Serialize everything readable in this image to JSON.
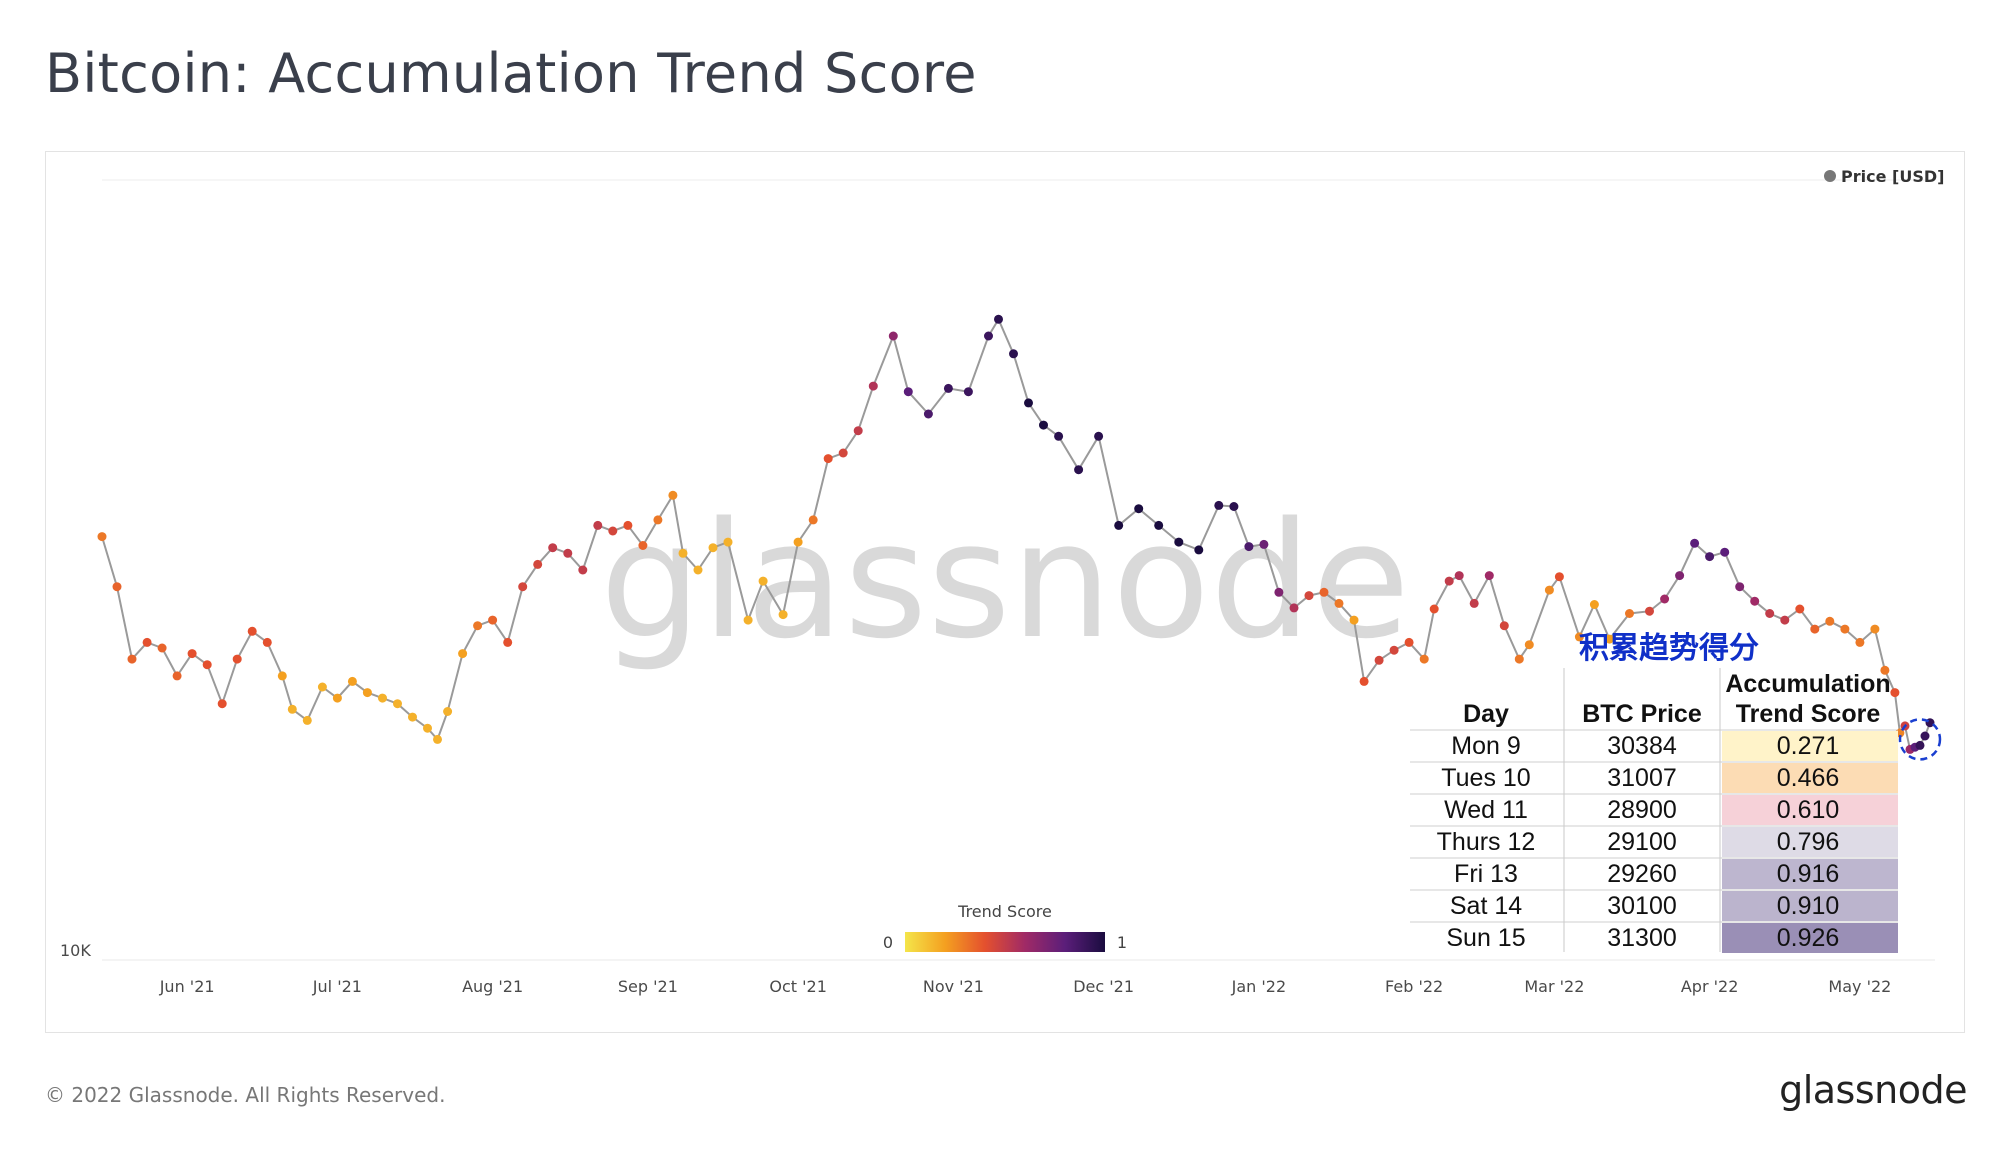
{
  "title": "Bitcoin: Accumulation Trend Score",
  "footer": {
    "copyright": "© 2022 Glassnode. All Rights Reserved.",
    "logo": "glassnode"
  },
  "watermark": "glassnode",
  "chart_data": {
    "type": "scatter",
    "title": "Bitcoin: Accumulation Trend Score",
    "series": [
      {
        "name": "Price [USD]",
        "color_by": "Trend Score",
        "line_color": "#9a9a9a",
        "points": [
          {
            "x": "2021-05-15",
            "y": 48000,
            "score": 0.3
          },
          {
            "x": "2021-05-18",
            "y": 43500,
            "score": 0.35
          },
          {
            "x": "2021-05-21",
            "y": 37000,
            "score": 0.35
          },
          {
            "x": "2021-05-24",
            "y": 38500,
            "score": 0.4
          },
          {
            "x": "2021-05-27",
            "y": 38000,
            "score": 0.35
          },
          {
            "x": "2021-05-30",
            "y": 35500,
            "score": 0.35
          },
          {
            "x": "2021-06-02",
            "y": 37500,
            "score": 0.4
          },
          {
            "x": "2021-06-05",
            "y": 36500,
            "score": 0.4
          },
          {
            "x": "2021-06-08",
            "y": 33000,
            "score": 0.4
          },
          {
            "x": "2021-06-11",
            "y": 37000,
            "score": 0.4
          },
          {
            "x": "2021-06-14",
            "y": 39500,
            "score": 0.4
          },
          {
            "x": "2021-06-17",
            "y": 38500,
            "score": 0.4
          },
          {
            "x": "2021-06-20",
            "y": 35500,
            "score": 0.2
          },
          {
            "x": "2021-06-22",
            "y": 32500,
            "score": 0.15
          },
          {
            "x": "2021-06-25",
            "y": 31500,
            "score": 0.15
          },
          {
            "x": "2021-06-28",
            "y": 34500,
            "score": 0.15
          },
          {
            "x": "2021-07-01",
            "y": 33500,
            "score": 0.2
          },
          {
            "x": "2021-07-04",
            "y": 35000,
            "score": 0.2
          },
          {
            "x": "2021-07-07",
            "y": 34000,
            "score": 0.2
          },
          {
            "x": "2021-07-10",
            "y": 33500,
            "score": 0.15
          },
          {
            "x": "2021-07-13",
            "y": 33000,
            "score": 0.15
          },
          {
            "x": "2021-07-16",
            "y": 31800,
            "score": 0.15
          },
          {
            "x": "2021-07-19",
            "y": 30800,
            "score": 0.15
          },
          {
            "x": "2021-07-21",
            "y": 29800,
            "score": 0.15
          },
          {
            "x": "2021-07-23",
            "y": 32300,
            "score": 0.15
          },
          {
            "x": "2021-07-26",
            "y": 37500,
            "score": 0.2
          },
          {
            "x": "2021-07-29",
            "y": 40000,
            "score": 0.3
          },
          {
            "x": "2021-08-01",
            "y": 40500,
            "score": 0.35
          },
          {
            "x": "2021-08-04",
            "y": 38500,
            "score": 0.4
          },
          {
            "x": "2021-08-07",
            "y": 43500,
            "score": 0.45
          },
          {
            "x": "2021-08-10",
            "y": 45500,
            "score": 0.45
          },
          {
            "x": "2021-08-13",
            "y": 47000,
            "score": 0.5
          },
          {
            "x": "2021-08-16",
            "y": 46500,
            "score": 0.5
          },
          {
            "x": "2021-08-19",
            "y": 45000,
            "score": 0.5
          },
          {
            "x": "2021-08-22",
            "y": 49000,
            "score": 0.5
          },
          {
            "x": "2021-08-25",
            "y": 48500,
            "score": 0.45
          },
          {
            "x": "2021-08-28",
            "y": 49000,
            "score": 0.4
          },
          {
            "x": "2021-08-31",
            "y": 47200,
            "score": 0.35
          },
          {
            "x": "2021-09-03",
            "y": 49500,
            "score": 0.3
          },
          {
            "x": "2021-09-06",
            "y": 51700,
            "score": 0.25
          },
          {
            "x": "2021-09-08",
            "y": 46500,
            "score": 0.15
          },
          {
            "x": "2021-09-11",
            "y": 45000,
            "score": 0.15
          },
          {
            "x": "2021-09-14",
            "y": 47000,
            "score": 0.15
          },
          {
            "x": "2021-09-17",
            "y": 47500,
            "score": 0.15
          },
          {
            "x": "2021-09-21",
            "y": 40500,
            "score": 0.15
          },
          {
            "x": "2021-09-24",
            "y": 44000,
            "score": 0.15
          },
          {
            "x": "2021-09-28",
            "y": 41000,
            "score": 0.15
          },
          {
            "x": "2021-10-01",
            "y": 47500,
            "score": 0.2
          },
          {
            "x": "2021-10-04",
            "y": 49500,
            "score": 0.3
          },
          {
            "x": "2021-10-07",
            "y": 55000,
            "score": 0.4
          },
          {
            "x": "2021-10-10",
            "y": 55500,
            "score": 0.45
          },
          {
            "x": "2021-10-13",
            "y": 57500,
            "score": 0.5
          },
          {
            "x": "2021-10-16",
            "y": 61500,
            "score": 0.55
          },
          {
            "x": "2021-10-20",
            "y": 66000,
            "score": 0.65
          },
          {
            "x": "2021-10-23",
            "y": 61000,
            "score": 0.8
          },
          {
            "x": "2021-10-27",
            "y": 59000,
            "score": 0.85
          },
          {
            "x": "2021-10-31",
            "y": 61300,
            "score": 0.9
          },
          {
            "x": "2021-11-04",
            "y": 61000,
            "score": 0.9
          },
          {
            "x": "2021-11-08",
            "y": 66000,
            "score": 0.9
          },
          {
            "x": "2021-11-10",
            "y": 67500,
            "score": 0.95
          },
          {
            "x": "2021-11-13",
            "y": 64400,
            "score": 0.95
          },
          {
            "x": "2021-11-16",
            "y": 60000,
            "score": 1.0
          },
          {
            "x": "2021-11-19",
            "y": 58000,
            "score": 1.0
          },
          {
            "x": "2021-11-22",
            "y": 57000,
            "score": 0.95
          },
          {
            "x": "2021-11-26",
            "y": 54000,
            "score": 0.95
          },
          {
            "x": "2021-11-30",
            "y": 57000,
            "score": 0.95
          },
          {
            "x": "2021-12-04",
            "y": 49000,
            "score": 1.0
          },
          {
            "x": "2021-12-08",
            "y": 50500,
            "score": 1.0
          },
          {
            "x": "2021-12-12",
            "y": 49000,
            "score": 1.0
          },
          {
            "x": "2021-12-16",
            "y": 47500,
            "score": 1.0
          },
          {
            "x": "2021-12-20",
            "y": 46800,
            "score": 1.0
          },
          {
            "x": "2021-12-24",
            "y": 50800,
            "score": 0.95
          },
          {
            "x": "2021-12-27",
            "y": 50700,
            "score": 0.95
          },
          {
            "x": "2021-12-30",
            "y": 47100,
            "score": 0.85
          },
          {
            "x": "2022-01-02",
            "y": 47300,
            "score": 0.75
          },
          {
            "x": "2022-01-05",
            "y": 43000,
            "score": 0.7
          },
          {
            "x": "2022-01-08",
            "y": 41600,
            "score": 0.55
          },
          {
            "x": "2022-01-11",
            "y": 42700,
            "score": 0.45
          },
          {
            "x": "2022-01-14",
            "y": 43000,
            "score": 0.35
          },
          {
            "x": "2022-01-17",
            "y": 42000,
            "score": 0.3
          },
          {
            "x": "2022-01-20",
            "y": 40500,
            "score": 0.2
          },
          {
            "x": "2022-01-22",
            "y": 35000,
            "score": 0.4
          },
          {
            "x": "2022-01-25",
            "y": 36900,
            "score": 0.45
          },
          {
            "x": "2022-01-28",
            "y": 37800,
            "score": 0.45
          },
          {
            "x": "2022-01-31",
            "y": 38500,
            "score": 0.4
          },
          {
            "x": "2022-02-03",
            "y": 37000,
            "score": 0.3
          },
          {
            "x": "2022-02-05",
            "y": 41500,
            "score": 0.4
          },
          {
            "x": "2022-02-08",
            "y": 44000,
            "score": 0.5
          },
          {
            "x": "2022-02-10",
            "y": 44500,
            "score": 0.55
          },
          {
            "x": "2022-02-13",
            "y": 42000,
            "score": 0.5
          },
          {
            "x": "2022-02-16",
            "y": 44500,
            "score": 0.6
          },
          {
            "x": "2022-02-19",
            "y": 40000,
            "score": 0.45
          },
          {
            "x": "2022-02-22",
            "y": 37000,
            "score": 0.3
          },
          {
            "x": "2022-02-24",
            "y": 38300,
            "score": 0.25
          },
          {
            "x": "2022-02-28",
            "y": 43200,
            "score": 0.25
          },
          {
            "x": "2022-03-02",
            "y": 44400,
            "score": 0.4
          },
          {
            "x": "2022-03-06",
            "y": 39000,
            "score": 0.25
          },
          {
            "x": "2022-03-09",
            "y": 41900,
            "score": 0.2
          },
          {
            "x": "2022-03-12",
            "y": 38800,
            "score": 0.2
          },
          {
            "x": "2022-03-16",
            "y": 41100,
            "score": 0.3
          },
          {
            "x": "2022-03-20",
            "y": 41300,
            "score": 0.45
          },
          {
            "x": "2022-03-23",
            "y": 42400,
            "score": 0.6
          },
          {
            "x": "2022-03-26",
            "y": 44500,
            "score": 0.7
          },
          {
            "x": "2022-03-29",
            "y": 47400,
            "score": 0.8
          },
          {
            "x": "2022-04-01",
            "y": 46200,
            "score": 0.85
          },
          {
            "x": "2022-04-04",
            "y": 46600,
            "score": 0.8
          },
          {
            "x": "2022-04-07",
            "y": 43500,
            "score": 0.7
          },
          {
            "x": "2022-04-10",
            "y": 42200,
            "score": 0.6
          },
          {
            "x": "2022-04-13",
            "y": 41100,
            "score": 0.5
          },
          {
            "x": "2022-04-16",
            "y": 40500,
            "score": 0.5
          },
          {
            "x": "2022-04-19",
            "y": 41500,
            "score": 0.4
          },
          {
            "x": "2022-04-22",
            "y": 39700,
            "score": 0.35
          },
          {
            "x": "2022-04-25",
            "y": 40400,
            "score": 0.3
          },
          {
            "x": "2022-04-28",
            "y": 39700,
            "score": 0.3
          },
          {
            "x": "2022-05-01",
            "y": 38500,
            "score": 0.3
          },
          {
            "x": "2022-05-04",
            "y": 39700,
            "score": 0.25
          },
          {
            "x": "2022-05-06",
            "y": 36000,
            "score": 0.3
          },
          {
            "x": "2022-05-08",
            "y": 34000,
            "score": 0.4
          },
          {
            "x": "2022-05-09",
            "y": 30384,
            "score": 0.271
          },
          {
            "x": "2022-05-10",
            "y": 31007,
            "score": 0.466
          },
          {
            "x": "2022-05-11",
            "y": 28900,
            "score": 0.61
          },
          {
            "x": "2022-05-12",
            "y": 29100,
            "score": 0.796
          },
          {
            "x": "2022-05-13",
            "y": 29260,
            "score": 0.916
          },
          {
            "x": "2022-05-14",
            "y": 30100,
            "score": 0.91
          },
          {
            "x": "2022-05-15",
            "y": 31300,
            "score": 0.926
          }
        ]
      }
    ],
    "x_ticks": [
      "Jun '21",
      "Jul '21",
      "Aug '21",
      "Sep '21",
      "Oct '21",
      "Nov '21",
      "Dec '21",
      "Jan '22",
      "Feb '22",
      "Mar '22",
      "Apr '22",
      "May '22"
    ],
    "y_ticks": [
      "10K"
    ],
    "xlim": [
      "2021-05-15",
      "2022-05-16"
    ],
    "ylim": [
      10000,
      80000
    ],
    "legend": {
      "label": "Price [USD]",
      "position": "top-right",
      "dot_color": "#777777"
    },
    "colorbar": {
      "label": "Trend Score",
      "min_label": "0",
      "max_label": "1",
      "stops": [
        "#f4e54a",
        "#f4a020",
        "#e4502e",
        "#a02a66",
        "#5b1e7a",
        "#1a0c3f"
      ]
    },
    "highlight": {
      "x_range": [
        "2022-05-09",
        "2022-05-15"
      ],
      "style": "dashed circle",
      "color": "#1a3fd0"
    },
    "grid": false
  },
  "table": {
    "note": "积累趋势得分",
    "headers": {
      "day": "Day",
      "price": "BTC Price",
      "score_line1": "Accumulation",
      "score_line2": "Trend Score"
    },
    "rows": [
      {
        "day": "Mon 9",
        "price": "30384",
        "score": "0.271",
        "color": "#fff3c9"
      },
      {
        "day": "Tues 10",
        "price": "31007",
        "score": "0.466",
        "color": "#fcdcb4"
      },
      {
        "day": "Wed 11",
        "price": "28900",
        "score": "0.610",
        "color": "#f6d1d8"
      },
      {
        "day": "Thurs 12",
        "price": "29100",
        "score": "0.796",
        "color": "#dedbe6"
      },
      {
        "day": "Fri 13",
        "price": "29260",
        "score": "0.916",
        "color": "#bdb6cf"
      },
      {
        "day": "Sat 14",
        "price": "30100",
        "score": "0.910",
        "color": "#bbb4cd"
      },
      {
        "day": "Sun 15",
        "price": "31300",
        "score": "0.926",
        "color": "#9a8fb6"
      }
    ]
  }
}
